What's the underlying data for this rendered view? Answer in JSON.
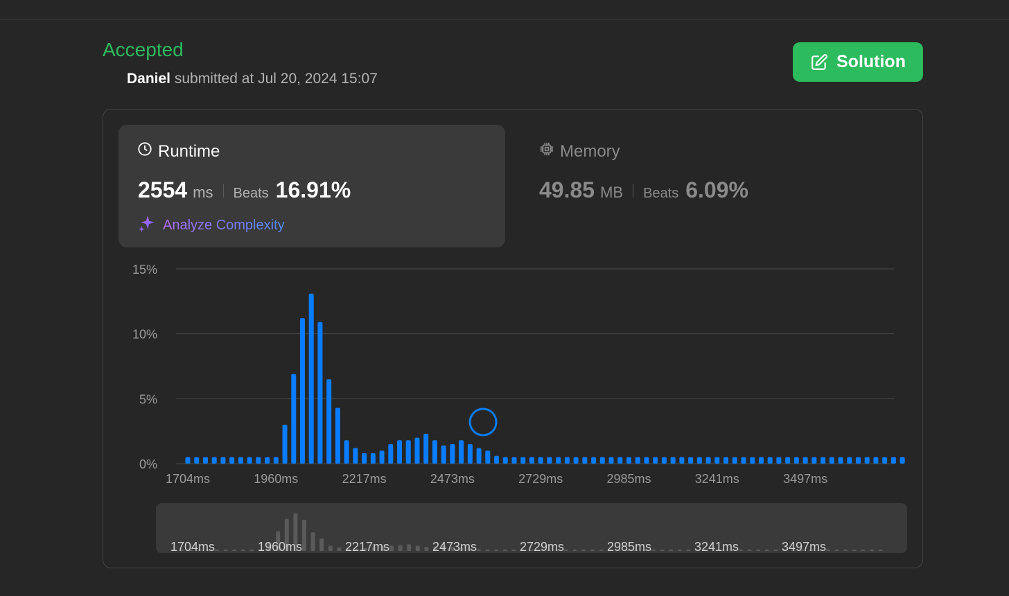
{
  "submission": {
    "status": "Accepted",
    "user": "Daniel",
    "submitted_text": "submitted at Jul 20, 2024 15:07",
    "solution_button": "Solution"
  },
  "colors": {
    "accepted": "#2cbb5d",
    "bar": "#0a7cff",
    "bar_muted": "#5a5a5a",
    "grid": "#4a4a4a"
  },
  "runtime": {
    "label": "Runtime",
    "icon": "clock-icon",
    "value": "2554",
    "unit": "ms",
    "beats_label": "Beats",
    "beats_pct": "16.91%",
    "analyze_label": "Analyze Complexity"
  },
  "memory": {
    "label": "Memory",
    "icon": "chip-icon",
    "value": "49.85",
    "unit": "MB",
    "beats_label": "Beats",
    "beats_pct": "6.09%"
  },
  "chart_data": {
    "type": "bar",
    "xlabel": "",
    "ylabel": "",
    "ylim": [
      0,
      15
    ],
    "y_ticks": [
      "15%",
      "10%",
      "5%",
      "0%"
    ],
    "y_tick_values": [
      15,
      10,
      5,
      0
    ],
    "x_tick_labels": [
      "1704ms",
      "1960ms",
      "2217ms",
      "2473ms",
      "2729ms",
      "2985ms",
      "3241ms",
      "3497ms"
    ],
    "x_tick_indices": [
      0,
      10,
      20,
      30,
      40,
      50,
      60,
      70
    ],
    "grid": true,
    "highlight_index": 33,
    "series": [
      {
        "values": [
          0.5,
          0.5,
          0.5,
          0.5,
          0.5,
          0.5,
          0.5,
          0.5,
          0.5,
          0.5,
          0.5,
          3.0,
          6.9,
          11.2,
          13.1,
          10.9,
          6.5,
          4.3,
          1.8,
          1.2,
          0.8,
          0.8,
          1.0,
          1.5,
          1.8,
          1.8,
          2.0,
          2.3,
          1.8,
          1.4,
          1.5,
          1.8,
          1.5,
          1.2,
          1.0,
          0.6,
          0.5,
          0.5,
          0.5,
          0.5,
          0.5,
          0.5,
          0.5,
          0.5,
          0.5,
          0.5,
          0.5,
          0.5,
          0.5,
          0.5,
          0.5,
          0.5,
          0.5,
          0.5,
          0.5,
          0.5,
          0.5,
          0.5,
          0.5,
          0.5,
          0.5,
          0.5,
          0.5,
          0.5,
          0.5,
          0.5,
          0.5,
          0.5,
          0.5,
          0.5,
          0.5,
          0.5,
          0.5,
          0.5,
          0.5,
          0.5,
          0.5,
          0.5,
          0.5,
          0.5,
          0.5,
          0.5
        ]
      }
    ]
  }
}
